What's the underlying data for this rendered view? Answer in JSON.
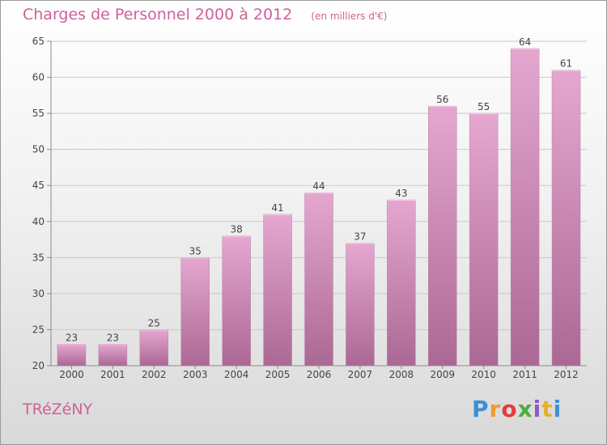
{
  "header": {
    "title": "Charges de Personnel 2000 à 2012",
    "unit": "(en milliers d'€)"
  },
  "footer": {
    "commune": "TRéZéNY",
    "logo_text": "Proxiti"
  },
  "chart_data": {
    "type": "bar",
    "title": "Charges de Personnel 2000 à 2012",
    "subtitle": "(en milliers d'€)",
    "xlabel": "",
    "ylabel": "",
    "categories": [
      "2000",
      "2001",
      "2002",
      "2003",
      "2004",
      "2005",
      "2006",
      "2007",
      "2008",
      "2009",
      "2010",
      "2011",
      "2012"
    ],
    "values": [
      23,
      23,
      25,
      35,
      38,
      41,
      44,
      37,
      43,
      56,
      55,
      64,
      61
    ],
    "ylim": [
      20,
      65
    ],
    "yticks": [
      20,
      25,
      30,
      35,
      40,
      45,
      50,
      55,
      60,
      65
    ],
    "grid": true,
    "data_labels": true,
    "colors": {
      "bar_top": "#e5a7cf",
      "bar_bottom": "#ab6894",
      "grid": "#c9c9c9",
      "axis": "#8a8a8a",
      "text": "#444444",
      "title": "#d0609a"
    }
  }
}
